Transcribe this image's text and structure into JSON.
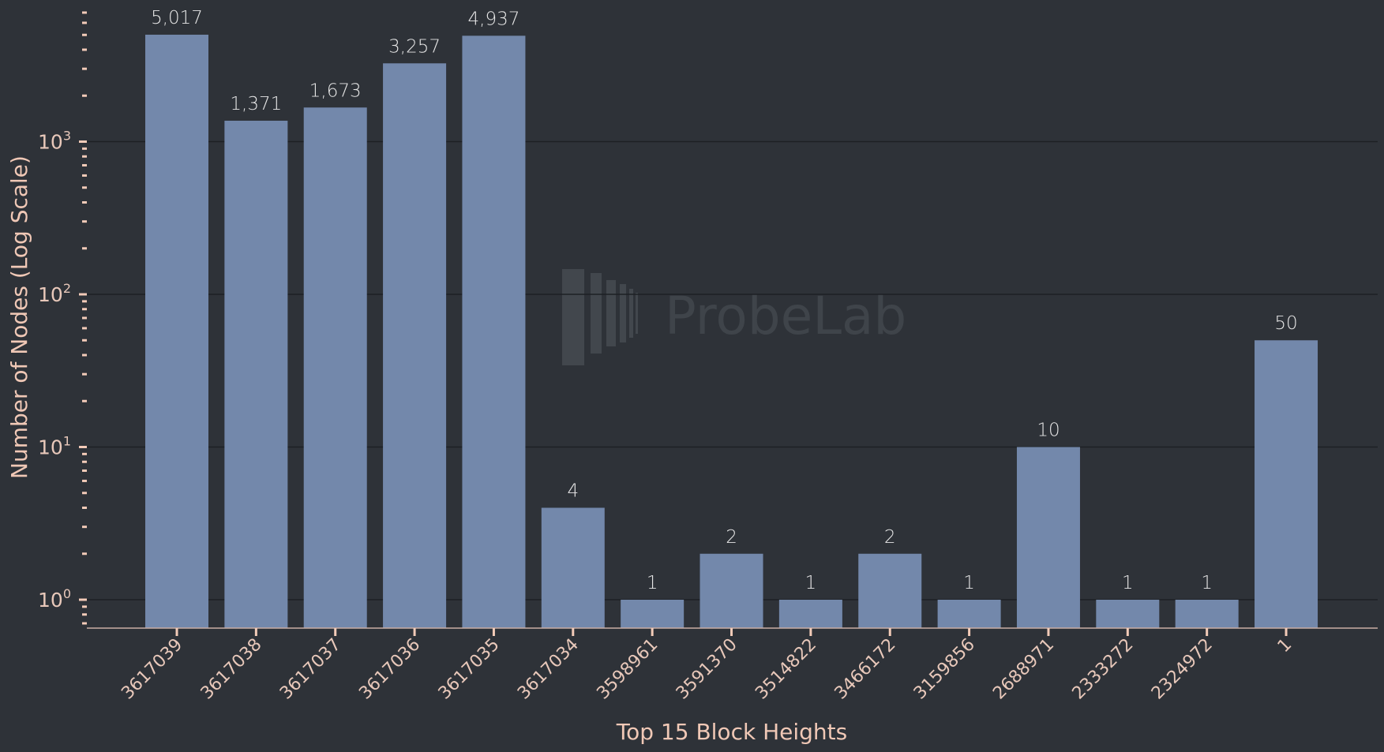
{
  "chart_data": {
    "type": "bar",
    "title": "",
    "xlabel": "Top 15 Block Heights",
    "ylabel": "Number of Nodes (Log Scale)",
    "yscale": "log",
    "ylim": [
      0.65,
      7500
    ],
    "grid": "y-major",
    "legend": null,
    "categories": [
      "3617039",
      "3617038",
      "3617037",
      "3617036",
      "3617035",
      "3617034",
      "3598961",
      "3591370",
      "3514822",
      "3466172",
      "3159856",
      "2688971",
      "2333272",
      "2324972",
      "1"
    ],
    "values": [
      5017,
      1371,
      1673,
      3257,
      4937,
      4,
      1,
      2,
      1,
      2,
      1,
      10,
      1,
      1,
      50
    ],
    "value_labels": [
      "5,017",
      "1,371",
      "1,673",
      "3,257",
      "4,937",
      "4",
      "1",
      "2",
      "1",
      "2",
      "1",
      "10",
      "1",
      "1",
      "50"
    ],
    "y_tick_labels": [
      {
        "base": "10",
        "exp": "0",
        "value": 1
      },
      {
        "base": "10",
        "exp": "1",
        "value": 10
      },
      {
        "base": "10",
        "exp": "2",
        "value": 100
      },
      {
        "base": "10",
        "exp": "3",
        "value": 1000
      }
    ],
    "bar_color": "#7388ab"
  },
  "watermark": {
    "text": "ProbeLab"
  },
  "colors": {
    "background": "#2e3238",
    "bar": "#7388ab",
    "axis_text": "#e8c8ba",
    "value_text": "#e6e6e6",
    "gridline": "#1d2024"
  }
}
